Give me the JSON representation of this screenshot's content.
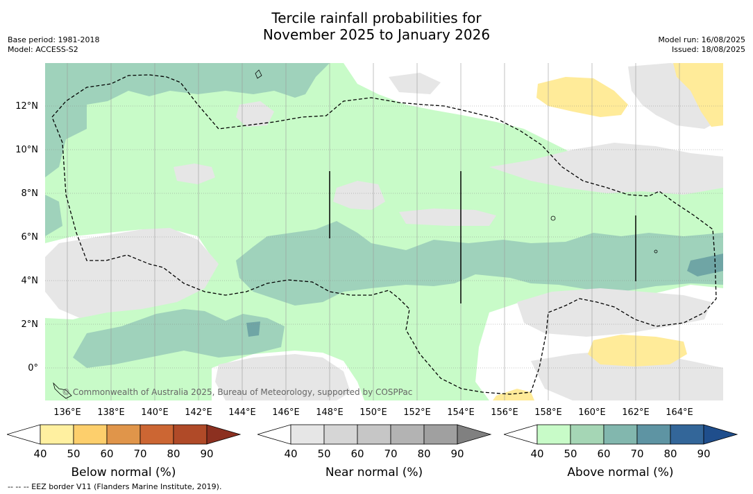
{
  "title": {
    "line1": "Tercile rainfall probabilities for",
    "line2": "November 2025 to January 2026"
  },
  "meta": {
    "base_period": "Base period: 1981-2018",
    "model": "Model: ACCESS-S2",
    "model_run": "Model run: 16/08/2025",
    "issued": "Issued: 18/08/2025"
  },
  "map": {
    "lat_labels": [
      "12°N",
      "10°N",
      "8°N",
      "6°N",
      "4°N",
      "2°N",
      "0°"
    ],
    "lon_labels": [
      "136°E",
      "138°E",
      "140°E",
      "142°E",
      "144°E",
      "146°E",
      "148°E",
      "150°E",
      "152°E",
      "154°E",
      "156°E",
      "158°E",
      "160°E",
      "162°E",
      "164°E"
    ],
    "copyright": "© Commonwealth of Australia 2025, Bureau of Meteorology, supported by COSPPac"
  },
  "legends": [
    {
      "title": "Below normal (%)",
      "ticks": [
        "40",
        "50",
        "60",
        "70",
        "80",
        "90"
      ],
      "colors": [
        "#fff0a0",
        "#fdcf6c",
        "#e0954a",
        "#cc6633",
        "#b04a28",
        "#8c3020"
      ]
    },
    {
      "title": "Near normal (%)",
      "ticks": [
        "40",
        "50",
        "60",
        "70",
        "80",
        "90"
      ],
      "colors": [
        "#e6e6e6",
        "#d6d6d6",
        "#c6c6c6",
        "#b3b3b3",
        "#a0a0a0",
        "#808080"
      ]
    },
    {
      "title": "Above normal (%)",
      "ticks": [
        "40",
        "50",
        "60",
        "70",
        "80",
        "90"
      ],
      "colors": [
        "#c8fbc8",
        "#a5d6b5",
        "#82b7ae",
        "#5e94a3",
        "#336699",
        "#1f4e8c"
      ]
    }
  ],
  "footnote": "-- -- -- EEZ border V11 (Flanders Marine Institute, 2019)."
}
